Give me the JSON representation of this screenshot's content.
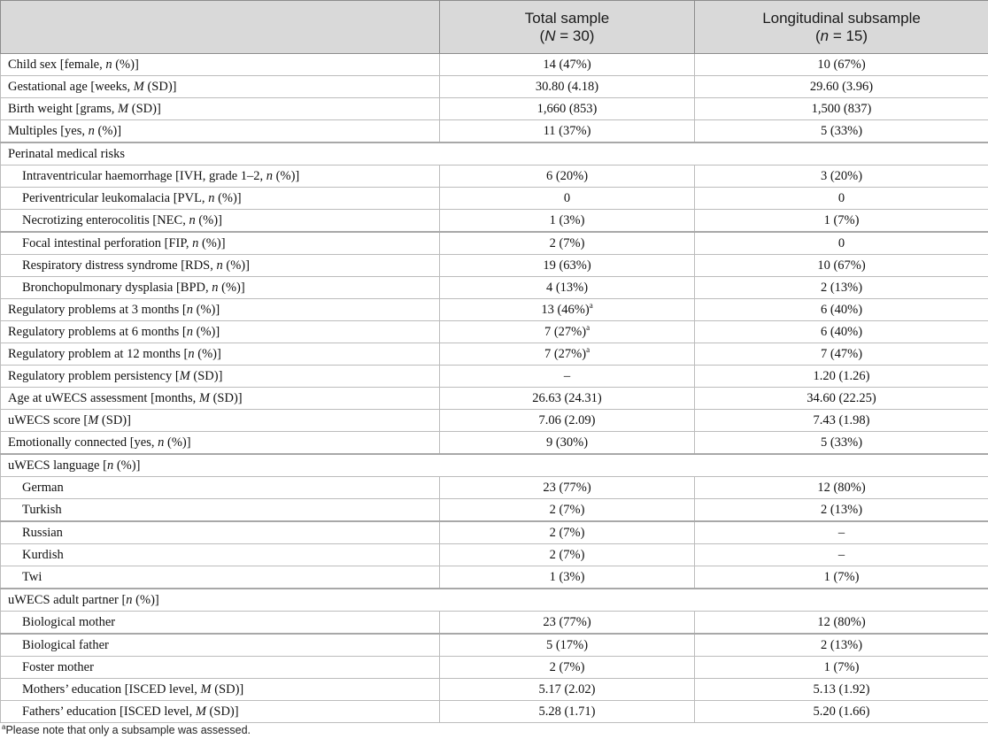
{
  "header": {
    "col1": "",
    "col2_line1": "Total sample",
    "col2_line2_pre": "(",
    "col2_line2_var": "N",
    "col2_line2_post": " = 30)",
    "col3_line1": "Longitudinal subsample",
    "col3_line2_pre": "(",
    "col3_line2_var": "n",
    "col3_line2_post": " = 15)"
  },
  "rows": [
    {
      "pre": "Child sex [female, ",
      "it": "n",
      "post": " (%)]",
      "a": "14 (47%)",
      "b": "10 (67%)",
      "kind": "main"
    },
    {
      "pre": "Gestational age [weeks, ",
      "it": "M",
      "post": " (SD)]",
      "a": "30.80 (4.18)",
      "b": "29.60 (3.96)",
      "kind": "main"
    },
    {
      "pre": "Birth weight [grams, ",
      "it": "M",
      "post": " (SD)]",
      "a": "1,660 (853)",
      "b": "1,500 (837)",
      "kind": "main"
    },
    {
      "pre": "Multiples [yes, ",
      "it": "n",
      "post": " (%)]",
      "a": "11 (37%)",
      "b": "5 (33%)",
      "kind": "main"
    },
    {
      "pre": "Perinatal medical risks",
      "it": "",
      "post": "",
      "a": "",
      "b": "",
      "kind": "section"
    },
    {
      "pre": "Intraventricular haemorrhage [IVH, grade 1–2, ",
      "it": "n",
      "post": " (%)]",
      "a": "6 (20%)",
      "b": "3 (20%)",
      "kind": "sub"
    },
    {
      "pre": "Periventricular leukomalacia [PVL, ",
      "it": "n",
      "post": " (%)]",
      "a": "0",
      "b": "0",
      "kind": "sub"
    },
    {
      "pre": "Necrotizing enterocolitis [NEC, ",
      "it": "n",
      "post": " (%)]",
      "a": "1 (3%)",
      "b": "1 (7%)",
      "kind": "sub"
    },
    {
      "pre": "Focal intestinal perforation [FIP, ",
      "it": "n",
      "post": " (%)]",
      "a": "2 (7%)",
      "b": "0",
      "kind": "sub"
    },
    {
      "pre": "Respiratory distress syndrome [RDS, ",
      "it": "n",
      "post": " (%)]",
      "a": "19 (63%)",
      "b": "10 (67%)",
      "kind": "sub"
    },
    {
      "pre": "Bronchopulmonary dysplasia [BPD, ",
      "it": "n",
      "post": " (%)]",
      "a": "4 (13%)",
      "b": "2 (13%)",
      "kind": "sub"
    },
    {
      "pre": "Regulatory problems at 3 months [",
      "it": "n",
      "post": " (%)]",
      "a": "13 (46%)",
      "asup": "a",
      "b": "6 (40%)",
      "kind": "main"
    },
    {
      "pre": "Regulatory problems at 6 months [",
      "it": "n",
      "post": " (%)]",
      "a": "7 (27%)",
      "asup": "a",
      "b": "6 (40%)",
      "kind": "main"
    },
    {
      "pre": "Regulatory problem at 12 months [",
      "it": "n",
      "post": " (%)]",
      "a": "7 (27%)",
      "asup": "a",
      "b": "7 (47%)",
      "kind": "main"
    },
    {
      "pre": "Regulatory problem persistency [",
      "it": "M",
      "post": " (SD)]",
      "a": "–",
      "b": "1.20 (1.26)",
      "kind": "main"
    },
    {
      "pre": "Age at uWECS assessment [months, ",
      "it": "M",
      "post": " (SD)]",
      "a": "26.63 (24.31)",
      "b": "34.60 (22.25)",
      "kind": "main"
    },
    {
      "pre": "uWECS score [",
      "it": "M",
      "post": " (SD)]",
      "a": "7.06 (2.09)",
      "b": "7.43 (1.98)",
      "kind": "main"
    },
    {
      "pre": "Emotionally connected [yes, ",
      "it": "n",
      "post": " (%)]",
      "a": "9 (30%)",
      "b": "5 (33%)",
      "kind": "main"
    },
    {
      "pre": "uWECS language [",
      "it": "n",
      "post": " (%)]",
      "a": "",
      "b": "",
      "kind": "section"
    },
    {
      "pre": "German",
      "it": "",
      "post": "",
      "a": "23 (77%)",
      "b": "12 (80%)",
      "kind": "sub"
    },
    {
      "pre": "Turkish",
      "it": "",
      "post": "",
      "a": "2 (7%)",
      "b": "2 (13%)",
      "kind": "sub"
    },
    {
      "pre": "Russian",
      "it": "",
      "post": "",
      "a": "2 (7%)",
      "b": "–",
      "kind": "sub"
    },
    {
      "pre": "Kurdish",
      "it": "",
      "post": "",
      "a": "2 (7%)",
      "b": "–",
      "kind": "sub"
    },
    {
      "pre": "Twi",
      "it": "",
      "post": "",
      "a": "1 (3%)",
      "b": "1 (7%)",
      "kind": "sub"
    },
    {
      "pre": "uWECS adult partner [",
      "it": "n",
      "post": " (%)]",
      "a": "",
      "b": "",
      "kind": "section"
    },
    {
      "pre": "Biological mother",
      "it": "",
      "post": "",
      "a": "23 (77%)",
      "b": "12 (80%)",
      "kind": "sub"
    },
    {
      "pre": "Biological father",
      "it": "",
      "post": "",
      "a": "5 (17%)",
      "b": "2 (13%)",
      "kind": "sub"
    },
    {
      "pre": "Foster mother",
      "it": "",
      "post": "",
      "a": "2 (7%)",
      "b": "1 (7%)",
      "kind": "sub"
    },
    {
      "pre": "Mothers’ education [ISCED level, ",
      "it": "M",
      "post": " (SD)]",
      "a": "5.17 (2.02)",
      "b": "5.13 (1.92)",
      "kind": "sub"
    },
    {
      "pre": "Fathers’ education [ISCED level, ",
      "it": "M",
      "post": " (SD)]",
      "a": "5.28 (1.71)",
      "b": "5.20 (1.66)",
      "kind": "sub"
    }
  ],
  "footnote": {
    "marker": "a",
    "text": "Please note that only a subsample was assessed."
  }
}
